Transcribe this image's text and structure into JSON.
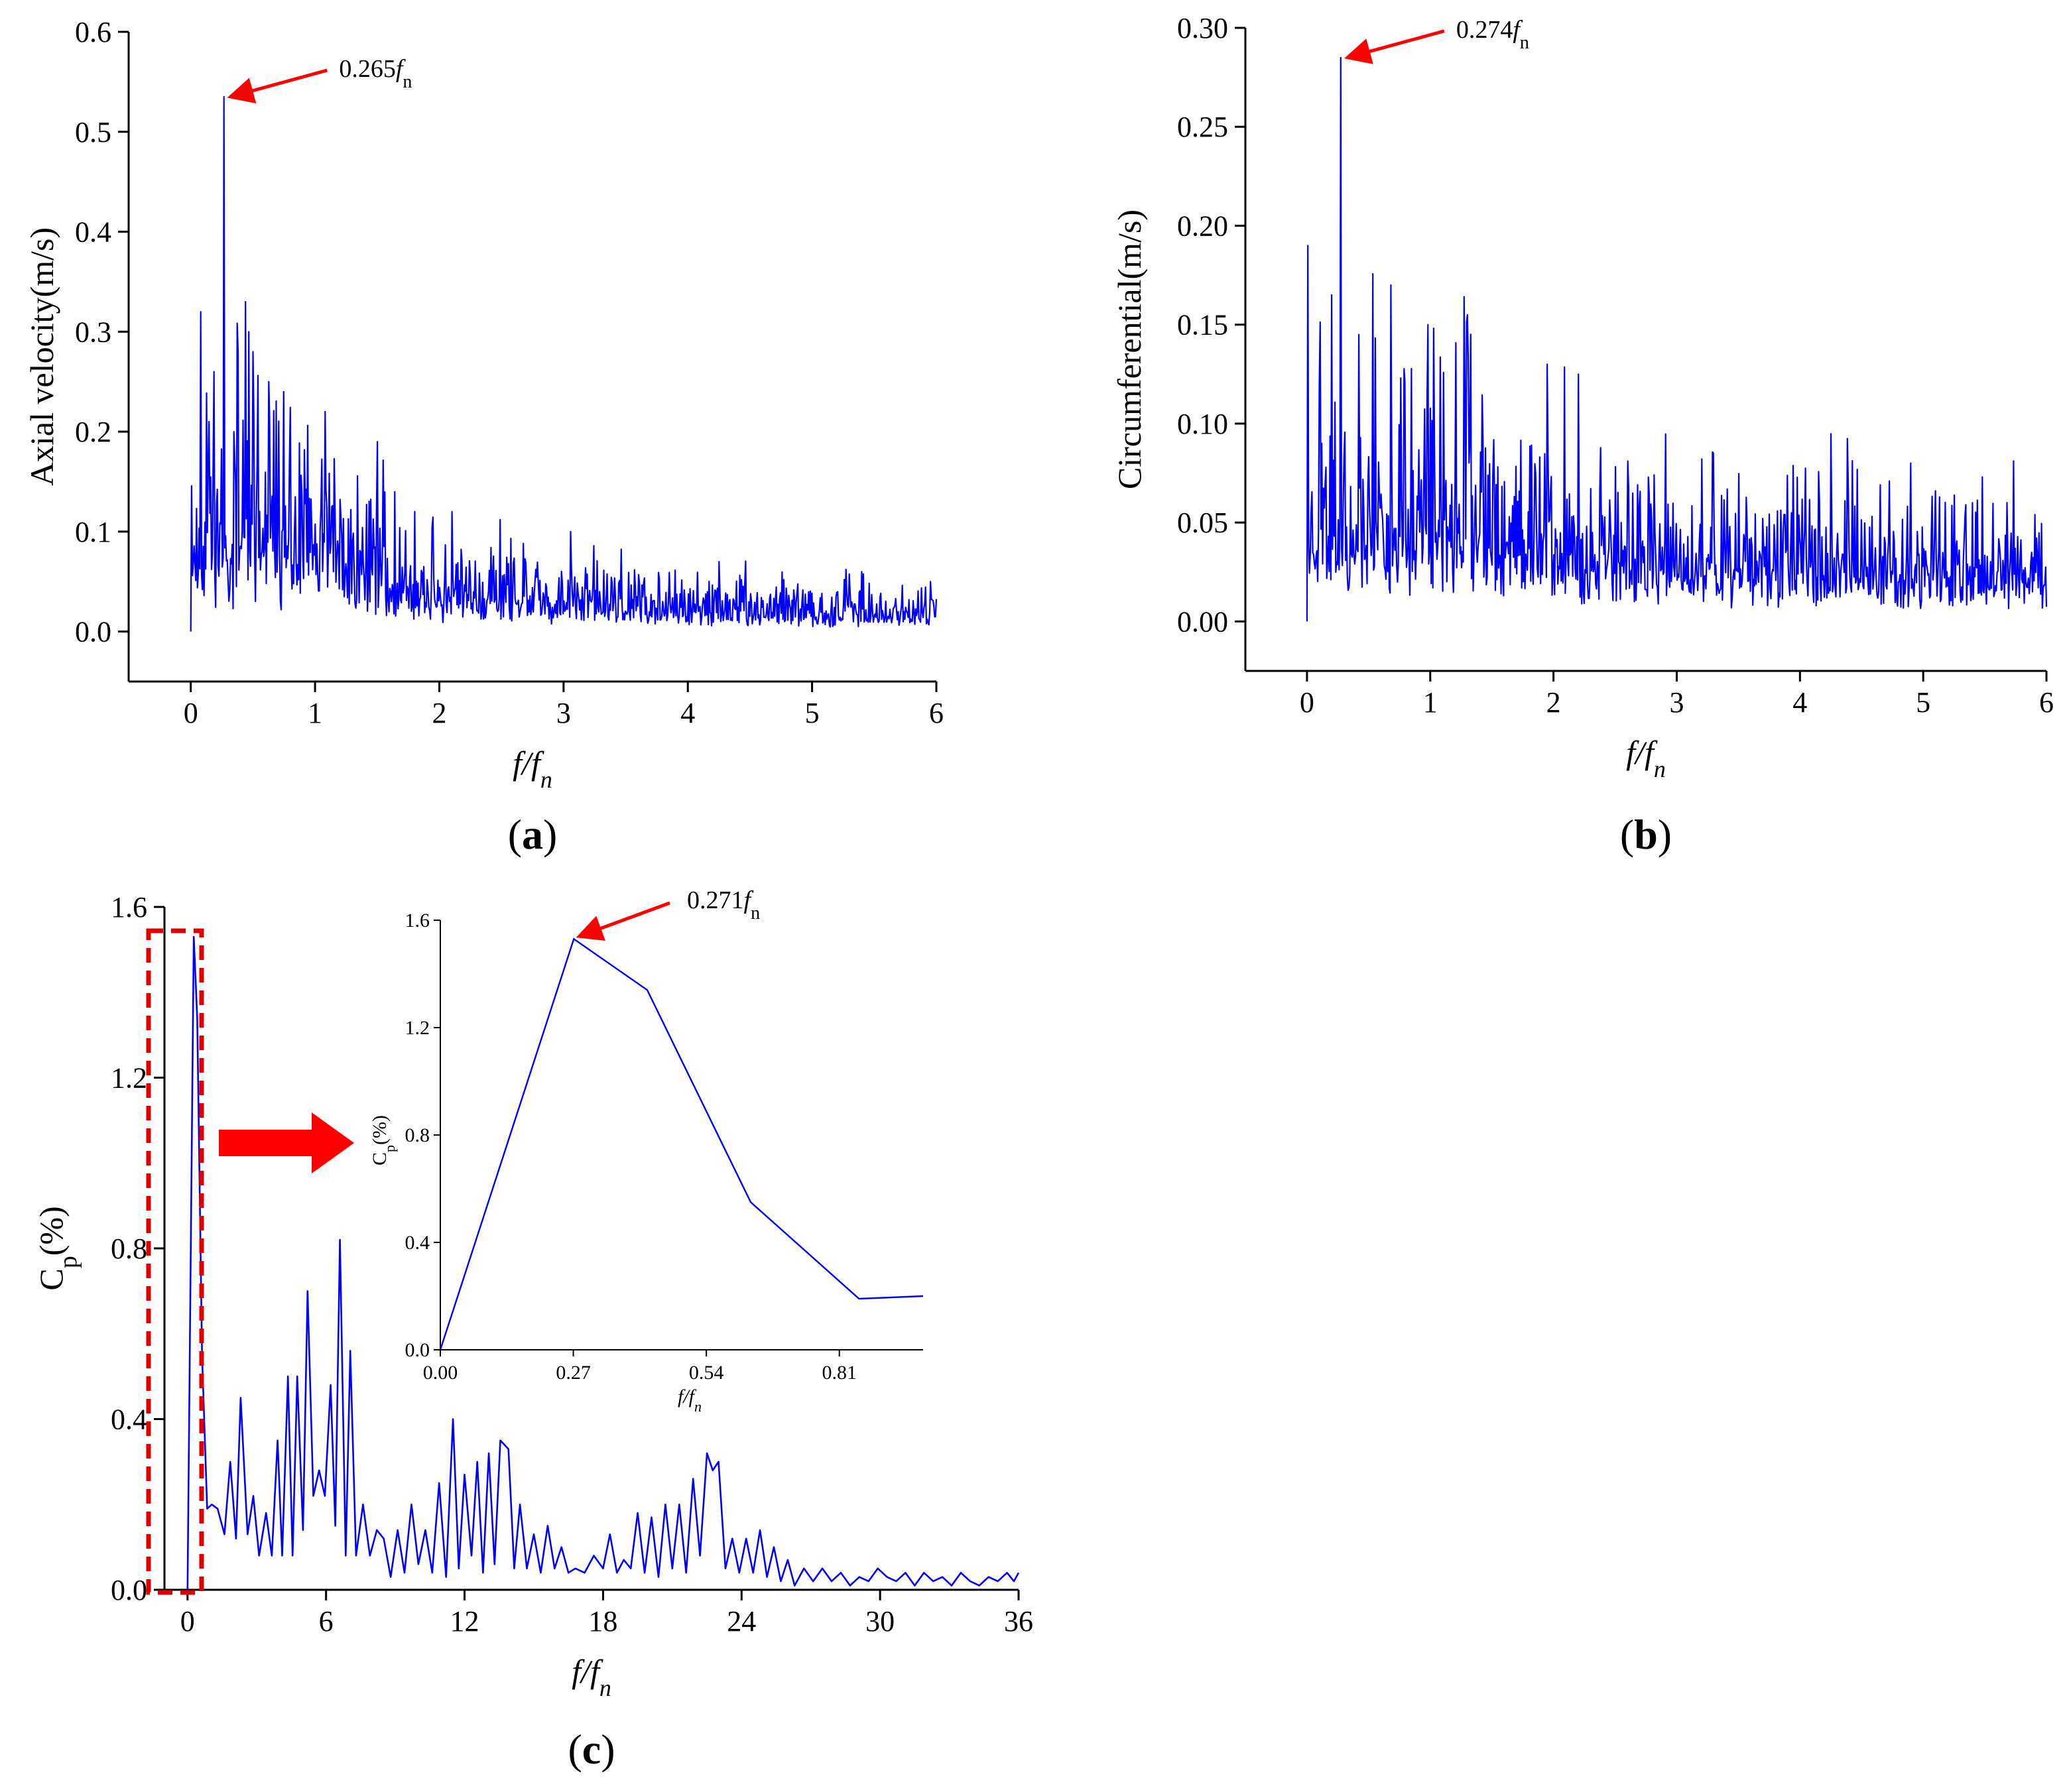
{
  "chart_data": [
    {
      "id": "a",
      "type": "line",
      "panel_label_open": "(",
      "panel_label_letter": "a",
      "panel_label_close": ")",
      "xlabel_f": "f",
      "xlabel_slash": "/",
      "xlabel_fn": "f",
      "xlabel_n": "n",
      "ylabel": "Axial velocity(m/s)",
      "xlim": [
        -0.5,
        6
      ],
      "ylim": [
        -0.05,
        0.6
      ],
      "xticks": [
        0,
        1,
        2,
        3,
        4,
        5,
        6
      ],
      "xtick_labels": [
        "0",
        "1",
        "2",
        "3",
        "4",
        "5",
        "6"
      ],
      "yticks": [
        0.0,
        0.1,
        0.2,
        0.3,
        0.4,
        0.5,
        0.6
      ],
      "ytick_labels": [
        "0.0",
        "0.1",
        "0.2",
        "0.3",
        "0.4",
        "0.5",
        "0.6"
      ],
      "series": [
        {
          "name": "Axial velocity",
          "color": "#0000ff",
          "generator": {
            "seed": 11,
            "n": 900,
            "xmax": 6.0,
            "floor": 0.0,
            "envelope": [
              [
                0.0,
                0.12
              ],
              [
                0.3,
                0.14
              ],
              [
                0.8,
                0.11
              ],
              [
                1.5,
                0.09
              ],
              [
                1.6,
                0.06
              ],
              [
                3.0,
                0.04
              ],
              [
                4.0,
                0.03
              ],
              [
                6.0,
                0.025
              ]
            ],
            "peaks": [
              [
                0.0,
                0.0
              ],
              [
                0.08,
                0.32
              ],
              [
                0.15,
                0.21
              ],
              [
                0.19,
                0.26
              ],
              [
                0.265,
                0.535
              ],
              [
                0.35,
                0.2
              ],
              [
                0.44,
                0.33
              ],
              [
                0.47,
                0.3
              ],
              [
                0.5,
                0.28
              ],
              [
                0.63,
                0.25
              ],
              [
                0.75,
                0.24
              ],
              [
                1.08,
                0.22
              ],
              [
                1.5,
                0.19
              ],
              [
                1.8,
                0.12
              ],
              [
                2.1,
                0.12
              ],
              [
                3.06,
                0.1
              ],
              [
                4.25,
                0.07
              ],
              [
                5.4,
                0.06
              ],
              [
                5.95,
                0.05
              ]
            ]
          }
        }
      ],
      "annotation": {
        "text": "0.265",
        "sub": "n",
        "x": 0.265,
        "y": 0.535,
        "f": "f"
      }
    },
    {
      "id": "b",
      "type": "line",
      "panel_label_open": "(",
      "panel_label_letter": "b",
      "panel_label_close": ")",
      "xlabel_f": "f",
      "xlabel_slash": "/",
      "xlabel_fn": "f",
      "xlabel_n": "n",
      "ylabel": "Circumferential(m/s)",
      "xlim": [
        -0.5,
        6
      ],
      "ylim": [
        -0.025,
        0.3
      ],
      "xticks": [
        0,
        1,
        2,
        3,
        4,
        5,
        6
      ],
      "xtick_labels": [
        "0",
        "1",
        "2",
        "3",
        "4",
        "5",
        "6"
      ],
      "yticks": [
        0.0,
        0.05,
        0.1,
        0.15,
        0.2,
        0.25,
        0.3
      ],
      "ytick_labels": [
        "0.00",
        "0.05",
        "0.10",
        "0.15",
        "0.20",
        "0.25",
        "0.30"
      ],
      "series": [
        {
          "name": "Circumferential",
          "color": "#0000ff",
          "generator": {
            "seed": 23,
            "n": 900,
            "xmax": 6.0,
            "floor": 0.002,
            "envelope": [
              [
                0.0,
                0.07
              ],
              [
                1.0,
                0.07
              ],
              [
                2.0,
                0.055
              ],
              [
                3.0,
                0.04
              ],
              [
                4.0,
                0.04
              ],
              [
                6.0,
                0.03
              ]
            ],
            "peaks": [
              [
                0.0,
                0.0
              ],
              [
                0.01,
                0.19
              ],
              [
                0.1,
                0.12
              ],
              [
                0.2,
                0.165
              ],
              [
                0.274,
                0.285
              ],
              [
                0.42,
                0.145
              ],
              [
                0.68,
                0.17
              ],
              [
                0.98,
                0.15
              ],
              [
                1.3,
                0.155
              ],
              [
                1.95,
                0.13
              ],
              [
                2.2,
                0.125
              ],
              [
                3.3,
                0.085
              ],
              [
                4.9,
                0.08
              ],
              [
                5.4,
                0.06
              ]
            ]
          }
        }
      ],
      "annotation": {
        "text": "0.274",
        "sub": "n",
        "x": 0.274,
        "y": 0.285,
        "f": "f"
      }
    },
    {
      "id": "c",
      "type": "line",
      "panel_label_open": "(",
      "panel_label_letter": "c",
      "panel_label_close": ")",
      "xlabel_f": "f",
      "xlabel_slash": "/",
      "xlabel_fn": "f",
      "xlabel_n": "n",
      "ylabel_main": "C",
      "ylabel_sub": "p",
      "ylabel_tail": "(%)",
      "xlim": [
        -1,
        36
      ],
      "ylim": [
        0,
        1.6
      ],
      "xticks": [
        0,
        6,
        12,
        18,
        24,
        30,
        36
      ],
      "xtick_labels": [
        "0",
        "6",
        "12",
        "18",
        "24",
        "30",
        "36"
      ],
      "yticks": [
        0.0,
        0.4,
        0.8,
        1.2,
        1.6
      ],
      "ytick_labels": [
        "0.0",
        "0.4",
        "0.8",
        "1.2",
        "1.6"
      ],
      "series": [
        {
          "name": "Cp",
          "color": "#0000ff",
          "points": [
            [
              0,
              0.0
            ],
            [
              0.271,
              1.53
            ],
            [
              0.42,
              1.34
            ],
            [
              0.63,
              0.55
            ],
            [
              0.85,
              0.19
            ],
            [
              1.05,
              0.2
            ],
            [
              1.3,
              0.19
            ],
            [
              1.6,
              0.13
            ],
            [
              1.85,
              0.3
            ],
            [
              2.1,
              0.12
            ],
            [
              2.3,
              0.45
            ],
            [
              2.6,
              0.13
            ],
            [
              2.85,
              0.22
            ],
            [
              3.1,
              0.08
            ],
            [
              3.4,
              0.18
            ],
            [
              3.65,
              0.08
            ],
            [
              3.9,
              0.35
            ],
            [
              4.1,
              0.08
            ],
            [
              4.35,
              0.5
            ],
            [
              4.55,
              0.08
            ],
            [
              4.75,
              0.5
            ],
            [
              5.0,
              0.14
            ],
            [
              5.2,
              0.7
            ],
            [
              5.45,
              0.22
            ],
            [
              5.7,
              0.28
            ],
            [
              5.95,
              0.22
            ],
            [
              6.2,
              0.48
            ],
            [
              6.4,
              0.15
            ],
            [
              6.6,
              0.82
            ],
            [
              6.85,
              0.08
            ],
            [
              7.05,
              0.56
            ],
            [
              7.3,
              0.08
            ],
            [
              7.6,
              0.2
            ],
            [
              7.9,
              0.08
            ],
            [
              8.2,
              0.14
            ],
            [
              8.5,
              0.12
            ],
            [
              8.8,
              0.03
            ],
            [
              9.1,
              0.14
            ],
            [
              9.4,
              0.04
            ],
            [
              9.7,
              0.2
            ],
            [
              10.0,
              0.06
            ],
            [
              10.3,
              0.14
            ],
            [
              10.6,
              0.04
            ],
            [
              10.9,
              0.25
            ],
            [
              11.2,
              0.03
            ],
            [
              11.5,
              0.4
            ],
            [
              11.75,
              0.05
            ],
            [
              12.0,
              0.27
            ],
            [
              12.3,
              0.08
            ],
            [
              12.55,
              0.3
            ],
            [
              12.8,
              0.04
            ],
            [
              13.05,
              0.32
            ],
            [
              13.3,
              0.06
            ],
            [
              13.55,
              0.35
            ],
            [
              13.9,
              0.33
            ],
            [
              14.15,
              0.05
            ],
            [
              14.4,
              0.2
            ],
            [
              14.7,
              0.05
            ],
            [
              15.0,
              0.13
            ],
            [
              15.3,
              0.04
            ],
            [
              15.6,
              0.15
            ],
            [
              15.9,
              0.05
            ],
            [
              16.2,
              0.1
            ],
            [
              16.5,
              0.04
            ],
            [
              16.8,
              0.05
            ],
            [
              17.2,
              0.04
            ],
            [
              17.6,
              0.08
            ],
            [
              18.0,
              0.05
            ],
            [
              18.3,
              0.13
            ],
            [
              18.6,
              0.04
            ],
            [
              18.9,
              0.07
            ],
            [
              19.2,
              0.05
            ],
            [
              19.5,
              0.18
            ],
            [
              19.8,
              0.04
            ],
            [
              20.1,
              0.17
            ],
            [
              20.4,
              0.03
            ],
            [
              20.7,
              0.2
            ],
            [
              21.0,
              0.05
            ],
            [
              21.3,
              0.2
            ],
            [
              21.6,
              0.04
            ],
            [
              21.9,
              0.26
            ],
            [
              22.2,
              0.08
            ],
            [
              22.5,
              0.32
            ],
            [
              22.75,
              0.28
            ],
            [
              23.0,
              0.3
            ],
            [
              23.3,
              0.05
            ],
            [
              23.6,
              0.12
            ],
            [
              23.9,
              0.04
            ],
            [
              24.2,
              0.12
            ],
            [
              24.5,
              0.04
            ],
            [
              24.8,
              0.14
            ],
            [
              25.1,
              0.03
            ],
            [
              25.4,
              0.1
            ],
            [
              25.7,
              0.02
            ],
            [
              26.0,
              0.07
            ],
            [
              26.3,
              0.01
            ],
            [
              26.7,
              0.05
            ],
            [
              27.1,
              0.02
            ],
            [
              27.5,
              0.05
            ],
            [
              27.9,
              0.02
            ],
            [
              28.3,
              0.04
            ],
            [
              28.7,
              0.01
            ],
            [
              29.1,
              0.03
            ],
            [
              29.5,
              0.02
            ],
            [
              29.9,
              0.05
            ],
            [
              30.3,
              0.03
            ],
            [
              30.7,
              0.02
            ],
            [
              31.1,
              0.04
            ],
            [
              31.5,
              0.01
            ],
            [
              31.9,
              0.04
            ],
            [
              32.3,
              0.02
            ],
            [
              32.7,
              0.03
            ],
            [
              33.1,
              0.01
            ],
            [
              33.5,
              0.04
            ],
            [
              33.9,
              0.02
            ],
            [
              34.3,
              0.01
            ],
            [
              34.7,
              0.03
            ],
            [
              35.1,
              0.02
            ],
            [
              35.5,
              0.04
            ],
            [
              35.8,
              0.02
            ],
            [
              36.0,
              0.04
            ]
          ]
        }
      ],
      "inset": {
        "ylabel_main": "C",
        "ylabel_sub": "p",
        "ylabel_tail": "(%)",
        "xlabel_f": "f",
        "xlabel_slash": "/",
        "xlabel_fn": "f",
        "xlabel_n": "n",
        "xlim": [
          0,
          0.98
        ],
        "ylim": [
          0,
          1.6
        ],
        "xticks": [
          0.0,
          0.27,
          0.54,
          0.81
        ],
        "xtick_labels": [
          "0.00",
          "0.27",
          "0.54",
          "0.81"
        ],
        "yticks": [
          0.0,
          0.4,
          0.8,
          1.2,
          1.6
        ],
        "ytick_labels": [
          "0.0",
          "0.4",
          "0.8",
          "1.2",
          "1.6"
        ],
        "points": [
          [
            0.0,
            0.0
          ],
          [
            0.271,
            1.53
          ],
          [
            0.42,
            1.34
          ],
          [
            0.63,
            0.55
          ],
          [
            0.85,
            0.19
          ],
          [
            0.98,
            0.2
          ]
        ],
        "annotation": {
          "text": "0.271",
          "sub": "n",
          "x": 0.271,
          "y": 1.53,
          "f": "f"
        }
      }
    }
  ],
  "colors": {
    "series": "#0000ff",
    "annotation": "#ff0000",
    "highlight_box": "#e00000",
    "axis": "#000000"
  }
}
